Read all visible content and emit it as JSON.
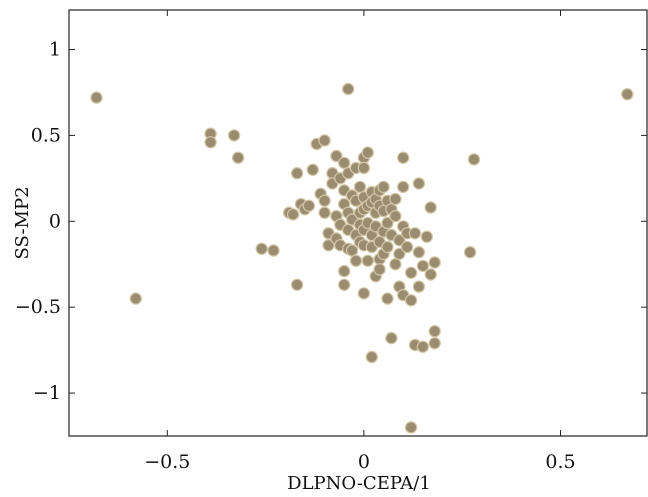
{
  "chart_data": {
    "type": "scatter",
    "xlabel": "DLPNO-CEPA/1",
    "ylabel": "SS-MP2",
    "xlim": [
      -0.75,
      0.72
    ],
    "ylim": [
      -1.25,
      1.23
    ],
    "xticks": [
      -0.5,
      0,
      0.5
    ],
    "xtick_labels": [
      "−0.5",
      "0",
      "0.5"
    ],
    "yticks": [
      -1,
      -0.5,
      0,
      0.5,
      1
    ],
    "ytick_labels": [
      "−1",
      "−0.5",
      "0",
      "0.5",
      "1"
    ],
    "grid": false,
    "marker_color": "#9a8c70",
    "marker_edge": "#d2c6a6",
    "points": [
      [
        -0.68,
        0.72
      ],
      [
        -0.58,
        -0.45
      ],
      [
        -0.39,
        0.51
      ],
      [
        -0.39,
        0.46
      ],
      [
        -0.33,
        0.5
      ],
      [
        -0.32,
        0.37
      ],
      [
        -0.26,
        -0.16
      ],
      [
        -0.23,
        -0.17
      ],
      [
        -0.19,
        0.05
      ],
      [
        -0.18,
        0.04
      ],
      [
        -0.17,
        0.28
      ],
      [
        -0.17,
        -0.37
      ],
      [
        -0.16,
        0.1
      ],
      [
        -0.15,
        0.07
      ],
      [
        -0.14,
        0.09
      ],
      [
        -0.13,
        0.3
      ],
      [
        -0.12,
        0.45
      ],
      [
        -0.1,
        0.47
      ],
      [
        -0.11,
        0.16
      ],
      [
        -0.1,
        0.12
      ],
      [
        -0.1,
        0.05
      ],
      [
        -0.09,
        -0.07
      ],
      [
        -0.09,
        -0.14
      ],
      [
        -0.08,
        0.28
      ],
      [
        -0.08,
        0.22
      ],
      [
        -0.07,
        0.38
      ],
      [
        -0.07,
        0.03
      ],
      [
        -0.07,
        -0.1
      ],
      [
        -0.06,
        0.25
      ],
      [
        -0.06,
        -0.02
      ],
      [
        -0.06,
        -0.14
      ],
      [
        -0.05,
        0.34
      ],
      [
        -0.05,
        0.18
      ],
      [
        -0.05,
        0.1
      ],
      [
        -0.05,
        -0.29
      ],
      [
        -0.05,
        -0.37
      ],
      [
        -0.04,
        0.77
      ],
      [
        -0.04,
        0.28
      ],
      [
        -0.04,
        0.05
      ],
      [
        -0.04,
        -0.05
      ],
      [
        -0.04,
        -0.16
      ],
      [
        -0.03,
        0.15
      ],
      [
        -0.03,
        0.01
      ],
      [
        -0.03,
        -0.17
      ],
      [
        -0.02,
        0.31
      ],
      [
        -0.02,
        0.12
      ],
      [
        -0.02,
        -0.08
      ],
      [
        -0.02,
        -0.23
      ],
      [
        -0.01,
        0.2
      ],
      [
        -0.01,
        0.05
      ],
      [
        -0.01,
        -0.02
      ],
      [
        -0.01,
        -0.12
      ],
      [
        0.0,
        0.37
      ],
      [
        0.0,
        0.31
      ],
      [
        0.0,
        0.14
      ],
      [
        0.0,
        0.07
      ],
      [
        0.0,
        -0.05
      ],
      [
        0.0,
        -0.14
      ],
      [
        0.0,
        -0.42
      ],
      [
        0.01,
        0.4
      ],
      [
        0.01,
        0.09
      ],
      [
        0.01,
        -0.01
      ],
      [
        0.01,
        -0.23
      ],
      [
        0.02,
        0.17
      ],
      [
        0.02,
        0.11
      ],
      [
        0.02,
        -0.08
      ],
      [
        0.02,
        -0.15
      ],
      [
        0.02,
        -0.79
      ],
      [
        0.03,
        0.13
      ],
      [
        0.03,
        0.05
      ],
      [
        0.03,
        -0.03
      ],
      [
        0.03,
        -0.32
      ],
      [
        0.04,
        0.18
      ],
      [
        0.04,
        0.09
      ],
      [
        0.04,
        -0.12
      ],
      [
        0.04,
        -0.22
      ],
      [
        0.04,
        -0.28
      ],
      [
        0.05,
        0.2
      ],
      [
        0.05,
        0.06
      ],
      [
        0.05,
        -0.06
      ],
      [
        0.05,
        -0.19
      ],
      [
        0.06,
        0.12
      ],
      [
        0.06,
        -0.01
      ],
      [
        0.06,
        -0.15
      ],
      [
        0.06,
        -0.45
      ],
      [
        0.07,
        0.07
      ],
      [
        0.07,
        -0.08
      ],
      [
        0.07,
        -0.68
      ],
      [
        0.08,
        0.13
      ],
      [
        0.08,
        0.03
      ],
      [
        0.08,
        -0.25
      ],
      [
        0.09,
        -0.11
      ],
      [
        0.09,
        -0.19
      ],
      [
        0.09,
        -0.38
      ],
      [
        0.1,
        0.37
      ],
      [
        0.1,
        0.2
      ],
      [
        0.1,
        -0.03
      ],
      [
        0.1,
        -0.43
      ],
      [
        0.11,
        -0.07
      ],
      [
        0.11,
        -0.15
      ],
      [
        0.12,
        -0.3
      ],
      [
        0.12,
        -0.46
      ],
      [
        0.12,
        -1.2
      ],
      [
        0.13,
        -0.07
      ],
      [
        0.13,
        -0.72
      ],
      [
        0.14,
        0.22
      ],
      [
        0.14,
        -0.18
      ],
      [
        0.14,
        -0.38
      ],
      [
        0.15,
        -0.73
      ],
      [
        0.15,
        -0.26
      ],
      [
        0.16,
        -0.09
      ],
      [
        0.17,
        0.08
      ],
      [
        0.17,
        -0.31
      ],
      [
        0.18,
        -0.24
      ],
      [
        0.18,
        -0.64
      ],
      [
        0.18,
        -0.71
      ],
      [
        0.27,
        -0.18
      ],
      [
        0.28,
        0.36
      ],
      [
        0.67,
        0.74
      ]
    ]
  }
}
